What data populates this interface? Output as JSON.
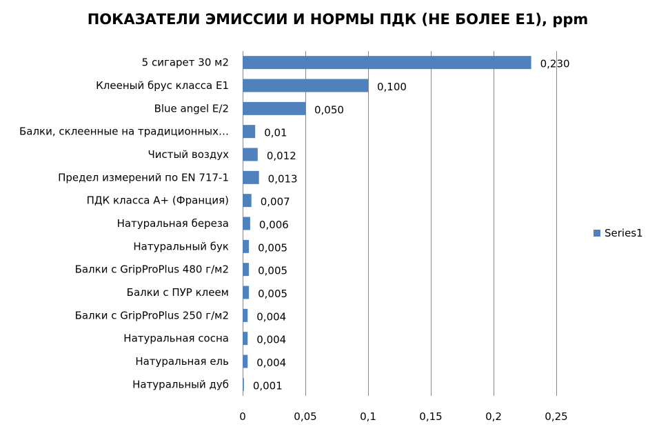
{
  "chart_data": {
    "type": "bar",
    "orientation": "horizontal",
    "title": "ПОКАЗАТЕЛИ ЭМИССИИ И НОРМЫ ПДК (НЕ БОЛЕЕ Е1), ppm",
    "categories": [
      "5 сигарет 30 м2",
      "Клееный брус класса Е1",
      "Blue angel E/2",
      "Балки, склеенные на традиционных…",
      "Чистый воздух",
      "Предел измерений по EN 717-1",
      "ПДК класса А+ (Франция)",
      "Натуральная береза",
      "Натуральный бук",
      "Балки с GripProPlus 480 г/м2",
      "Балки с ПУР клеем",
      "Балки с GripProPlus 250 г/м2",
      "Натуральная сосна",
      "Натуральная ель",
      "Натуральный дуб"
    ],
    "series": [
      {
        "name": "Series1",
        "color": "#4f81bd",
        "values": [
          0.23,
          0.1,
          0.05,
          0.01,
          0.012,
          0.013,
          0.007,
          0.006,
          0.005,
          0.005,
          0.005,
          0.004,
          0.004,
          0.004,
          0.001
        ],
        "data_labels": [
          "0,230",
          "0,100",
          "0,050",
          "0,01",
          "0,012",
          "0,013",
          "0,007",
          "0,006",
          "0,005",
          "0,005",
          "0,005",
          "0,004",
          "0,004",
          "0,004",
          "0,001"
        ]
      }
    ],
    "xlim": [
      0,
      0.25
    ],
    "x_ticks": [
      0,
      0.05,
      0.1,
      0.15,
      0.2,
      0.25
    ],
    "x_tick_labels": [
      "0",
      "0,05",
      "0,1",
      "0,15",
      "0,2",
      "0,25"
    ],
    "xlabel": "",
    "ylabel": "",
    "grid": true,
    "legend": {
      "position": "right",
      "entries": [
        "Series1"
      ]
    }
  }
}
